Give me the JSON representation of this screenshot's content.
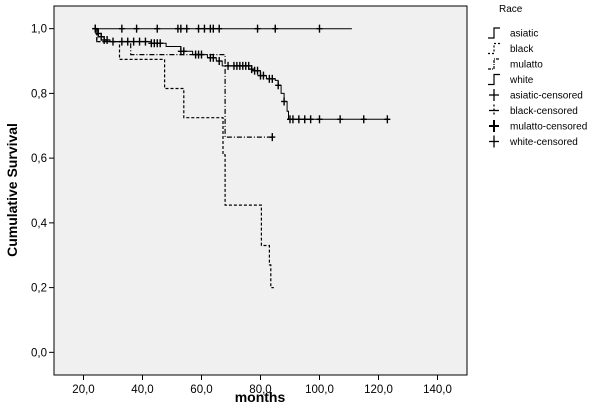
{
  "chart_data": {
    "type": "line",
    "subtype": "kaplan-meier-survival",
    "title": "",
    "xlabel": "months",
    "ylabel": "Cumulative Survival",
    "xlim": [
      10,
      150
    ],
    "ylim": [
      -0.07,
      1.07
    ],
    "x_ticks": [
      20,
      40,
      60,
      80,
      100,
      120,
      140
    ],
    "x_tick_labels": [
      "20,0",
      "40,0",
      "60,0",
      "80,0",
      "100,0",
      "120,0",
      "140,0"
    ],
    "y_ticks": [
      0,
      0.2,
      0.4,
      0.6,
      0.8,
      1.0
    ],
    "y_tick_labels": [
      "0,0",
      "0,2",
      "0,4",
      "0,6",
      "0,8",
      "1,0"
    ],
    "grid": false,
    "plot_background": "#f0f0f0",
    "legend": {
      "title": "Race",
      "placement": "right",
      "entries": [
        {
          "label": "asiatic",
          "style": "step-solid"
        },
        {
          "label": "black",
          "style": "step-dashed"
        },
        {
          "label": "mulatto",
          "style": "step-dashdot"
        },
        {
          "label": "white",
          "style": "step-solid"
        },
        {
          "label": "asiatic-censored",
          "style": "plus"
        },
        {
          "label": "black-censored",
          "style": "plus-dashed"
        },
        {
          "label": "mulatto-censored",
          "style": "plus-bold"
        },
        {
          "label": "white-censored",
          "style": "plus"
        }
      ]
    },
    "series": [
      {
        "name": "asiatic",
        "dash": "solid",
        "steps": [
          [
            24,
            1.0
          ],
          [
            111,
            1.0
          ]
        ],
        "censored_x": [
          24,
          33,
          38,
          45,
          52,
          53,
          55,
          59,
          61,
          63,
          64,
          66,
          79,
          85,
          100
        ]
      },
      {
        "name": "mulatto",
        "dash": "dashdot",
        "steps": [
          [
            24,
            1.0
          ],
          [
            24.5,
            0.96
          ],
          [
            32,
            0.96
          ],
          [
            36,
            0.92
          ],
          [
            54,
            0.92
          ],
          [
            68,
            0.665
          ],
          [
            84,
            0.665
          ]
        ],
        "censored_x": [
          84
        ]
      },
      {
        "name": "black",
        "dash": "dashed",
        "steps": [
          [
            24,
            1.0
          ],
          [
            24.5,
            0.96
          ],
          [
            32,
            0.96
          ],
          [
            32.2,
            0.905
          ],
          [
            47,
            0.905
          ],
          [
            47.5,
            0.815
          ],
          [
            53.5,
            0.815
          ],
          [
            54,
            0.725
          ],
          [
            67,
            0.725
          ],
          [
            67.3,
            0.61
          ],
          [
            68,
            0.455
          ],
          [
            80,
            0.455
          ],
          [
            80.3,
            0.33
          ],
          [
            82.5,
            0.33
          ],
          [
            83,
            0.27
          ],
          [
            83.5,
            0.2
          ],
          [
            84.5,
            0.2
          ]
        ],
        "censored_x": []
      },
      {
        "name": "white",
        "dash": "solid",
        "steps": [
          [
            24,
            1.0
          ],
          [
            25,
            0.985
          ],
          [
            26,
            0.975
          ],
          [
            27,
            0.965
          ],
          [
            29,
            0.96
          ],
          [
            42,
            0.96
          ],
          [
            43,
            0.955
          ],
          [
            47,
            0.955
          ],
          [
            48,
            0.945
          ],
          [
            52,
            0.945
          ],
          [
            53,
            0.93
          ],
          [
            56,
            0.93
          ],
          [
            57,
            0.92
          ],
          [
            61,
            0.92
          ],
          [
            62,
            0.91
          ],
          [
            64,
            0.91
          ],
          [
            65,
            0.9
          ],
          [
            66,
            0.9
          ],
          [
            67,
            0.885
          ],
          [
            76,
            0.885
          ],
          [
            77,
            0.875
          ],
          [
            78,
            0.87
          ],
          [
            80,
            0.855
          ],
          [
            82,
            0.845
          ],
          [
            85,
            0.84
          ],
          [
            86,
            0.825
          ],
          [
            87,
            0.8
          ],
          [
            88,
            0.775
          ],
          [
            89,
            0.745
          ],
          [
            89.5,
            0.72
          ],
          [
            123,
            0.72
          ]
        ],
        "censored_x": [
          24,
          25,
          26,
          27,
          28,
          30,
          33,
          35,
          37,
          39,
          41,
          43,
          44,
          45,
          46,
          53,
          54,
          58,
          59,
          60,
          63,
          64,
          66,
          69,
          71,
          72,
          73,
          74,
          75,
          76,
          77,
          78,
          79,
          80,
          81,
          83,
          84,
          86,
          88,
          90,
          91,
          93,
          95,
          97,
          100,
          107,
          115,
          123
        ]
      }
    ]
  }
}
